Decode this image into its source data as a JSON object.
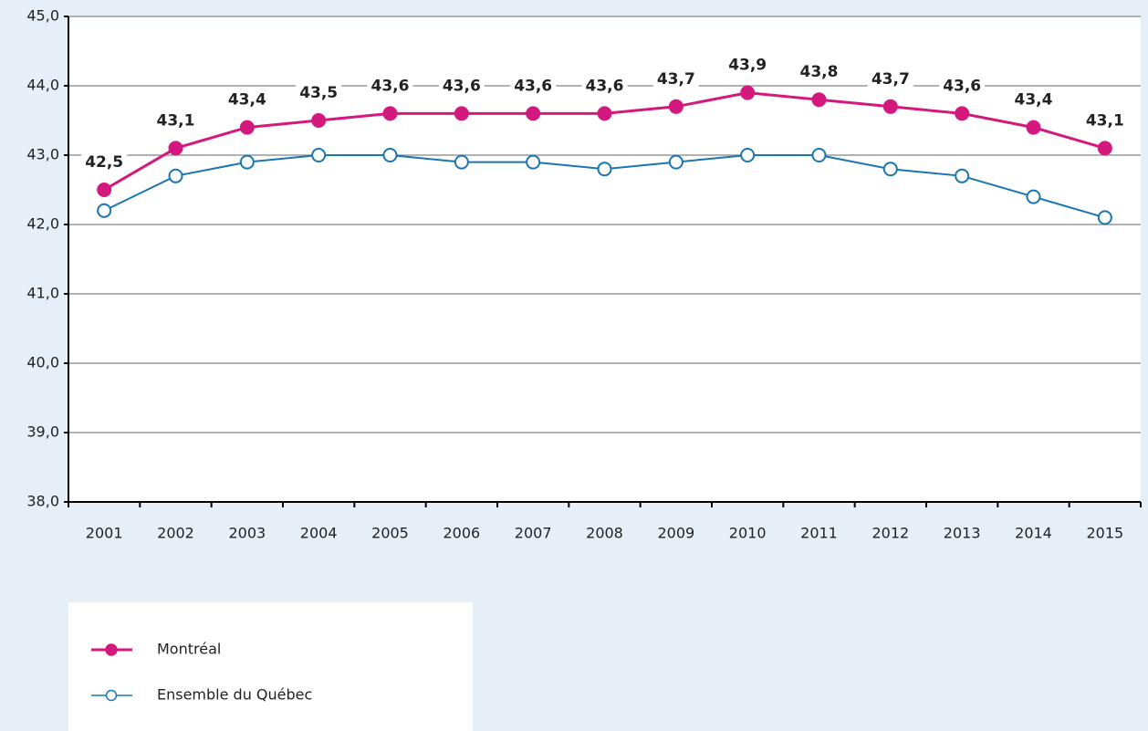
{
  "chart_data": {
    "type": "line",
    "categories": [
      "2001",
      "2002",
      "2003",
      "2004",
      "2005",
      "2006",
      "2007",
      "2008",
      "2009",
      "2010",
      "2011",
      "2012",
      "2013",
      "2014",
      "2015"
    ],
    "series": [
      {
        "name": "Montréal",
        "color": "#d4197e",
        "marker": "filled",
        "values": [
          42.5,
          43.1,
          43.4,
          43.5,
          43.6,
          43.6,
          43.6,
          43.6,
          43.7,
          43.9,
          43.8,
          43.7,
          43.6,
          43.4,
          43.1
        ],
        "value_labels": [
          "42,5",
          "43,1",
          "43,4",
          "43,5",
          "43,6",
          "43,6",
          "43,6",
          "43,6",
          "43,7",
          "43,9",
          "43,8",
          "43,7",
          "43,6",
          "43,4",
          "43,1"
        ]
      },
      {
        "name": "Ensemble du Québec",
        "color": "#1a75b0",
        "marker": "open",
        "values": [
          42.2,
          42.7,
          42.9,
          43.0,
          43.0,
          42.9,
          42.9,
          42.8,
          42.9,
          43.0,
          43.0,
          42.8,
          42.7,
          42.4,
          42.1
        ]
      }
    ],
    "ylim": [
      38,
      45
    ],
    "yticks": [
      {
        "value": 38,
        "label": "38,0"
      },
      {
        "value": 39,
        "label": "39,0"
      },
      {
        "value": 40,
        "label": "40,0"
      },
      {
        "value": 41,
        "label": "41,0"
      },
      {
        "value": 42,
        "label": "42,0"
      },
      {
        "value": 43,
        "label": "43,0"
      },
      {
        "value": 44,
        "label": "44,0"
      },
      {
        "value": 45,
        "label": "45,0"
      }
    ],
    "grid": true
  }
}
